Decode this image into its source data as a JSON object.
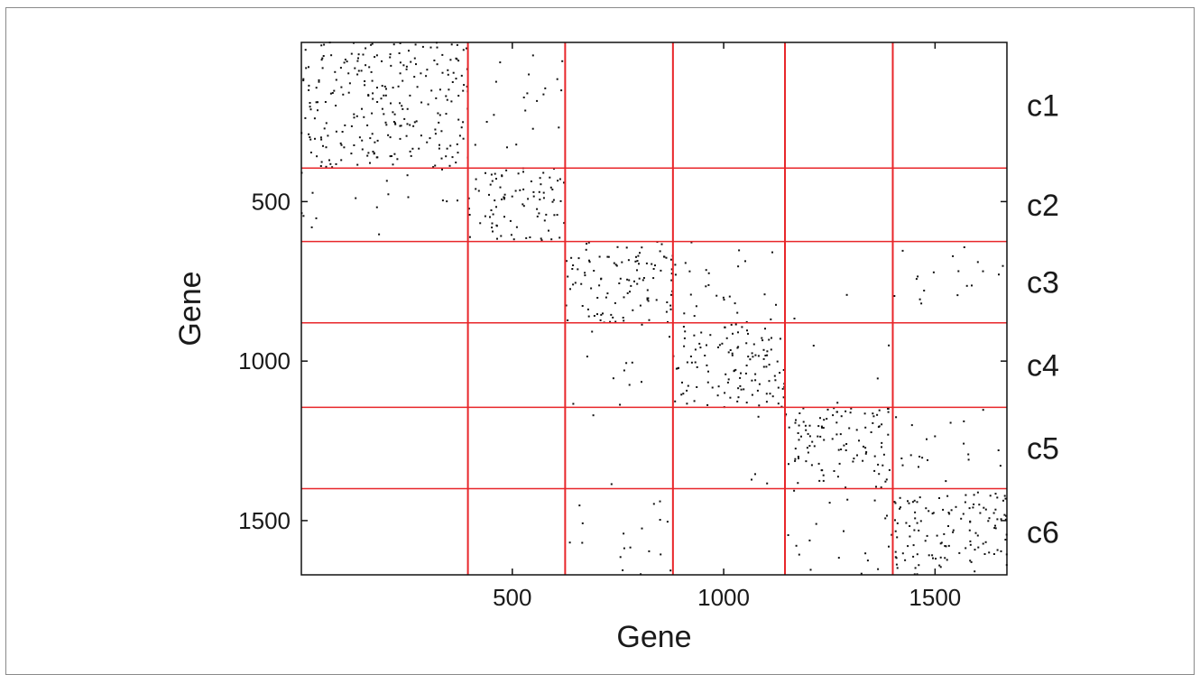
{
  "chart_data": {
    "type": "scatter",
    "subtype": "sparse-matrix",
    "title": "",
    "xlabel": "Gene",
    "ylabel": "Gene",
    "xlim": [
      1,
      1670
    ],
    "ylim": [
      1,
      1670
    ],
    "y_inverted": true,
    "xticks": [
      500,
      1000,
      1500
    ],
    "yticks": [
      500,
      1000,
      1500
    ],
    "xtick_labels": [
      "500",
      "1000",
      "1500"
    ],
    "ytick_labels": [
      "500",
      "1000",
      "1500"
    ],
    "grid": false,
    "boundary_color": "#e8262a",
    "cluster_boundaries": [
      395,
      625,
      880,
      1145,
      1400
    ],
    "cluster_labels": [
      "c1",
      "c2",
      "c3",
      "c4",
      "c5",
      "c6"
    ],
    "block_densities": [
      [
        0.9,
        0.12,
        0.0,
        0.0,
        0.0,
        0.0
      ],
      [
        0.1,
        0.9,
        0.0,
        0.0,
        0.0,
        0.0
      ],
      [
        0.0,
        0.0,
        0.9,
        0.22,
        0.02,
        0.14
      ],
      [
        0.0,
        0.0,
        0.1,
        0.95,
        0.03,
        0.0
      ],
      [
        0.0,
        0.0,
        0.02,
        0.03,
        0.9,
        0.16
      ],
      [
        0.0,
        0.0,
        0.14,
        0.0,
        0.16,
        0.95
      ]
    ]
  }
}
